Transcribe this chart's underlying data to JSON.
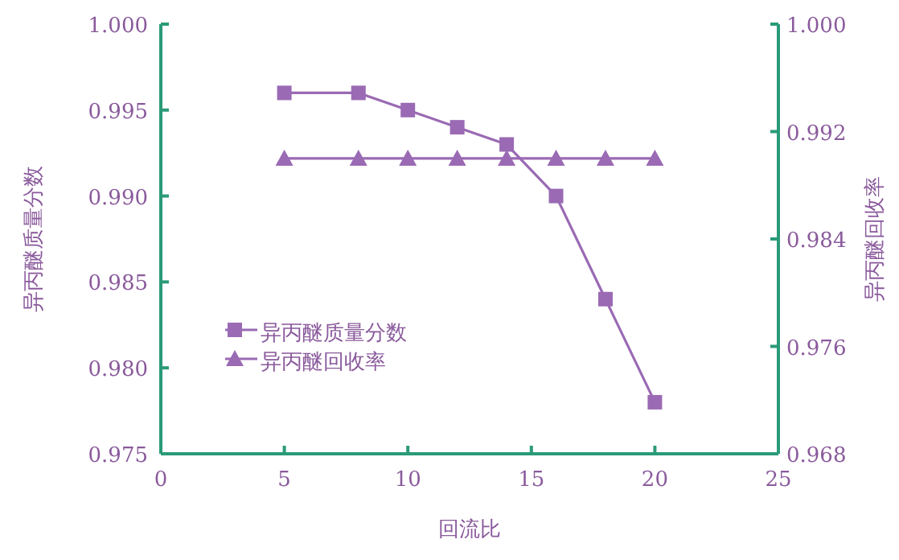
{
  "chart_data": {
    "type": "line",
    "xlabel": "回流比",
    "ylabel": "异丙醚质量分数",
    "y2label": "异丙醚回收率",
    "x": [
      5,
      8,
      10,
      12,
      14,
      16,
      18,
      20
    ],
    "series": [
      {
        "name": "异丙醚质量分数",
        "color": "#9a6ab4",
        "marker": "square",
        "values": [
          0.996,
          0.996,
          0.995,
          0.994,
          0.993,
          0.99,
          0.984,
          0.978
        ]
      },
      {
        "name": "异丙醚回收率",
        "color": "#9a6ab4",
        "marker": "triangle",
        "axis": "y2",
        "values": [
          0.99,
          0.99,
          0.99,
          0.99,
          0.99,
          0.99,
          0.99,
          0.99
        ]
      }
    ],
    "xlim": [
      0,
      25
    ],
    "xticks": [
      0,
      5,
      10,
      15,
      20,
      25
    ],
    "ylim": [
      0.975,
      1.0
    ],
    "yticks": [
      {
        "value": 0.975,
        "label": "0.975"
      },
      {
        "value": 0.98,
        "label": "0.980"
      },
      {
        "value": 0.985,
        "label": "0.985"
      },
      {
        "value": 0.99,
        "label": "0.990"
      },
      {
        "value": 0.995,
        "label": "0.995"
      },
      {
        "value": 1.0,
        "label": "1.000"
      }
    ],
    "y2lim": [
      0.968,
      1.0
    ],
    "y2ticks": [
      {
        "value": 0.968,
        "label": "0.968"
      },
      {
        "value": 0.976,
        "label": "0.976"
      },
      {
        "value": 0.984,
        "label": "0.984"
      },
      {
        "value": 0.992,
        "label": "0.992"
      },
      {
        "value": 1.0,
        "label": "1.000"
      }
    ],
    "legend": "left",
    "grid": false,
    "line_style": "solid"
  }
}
